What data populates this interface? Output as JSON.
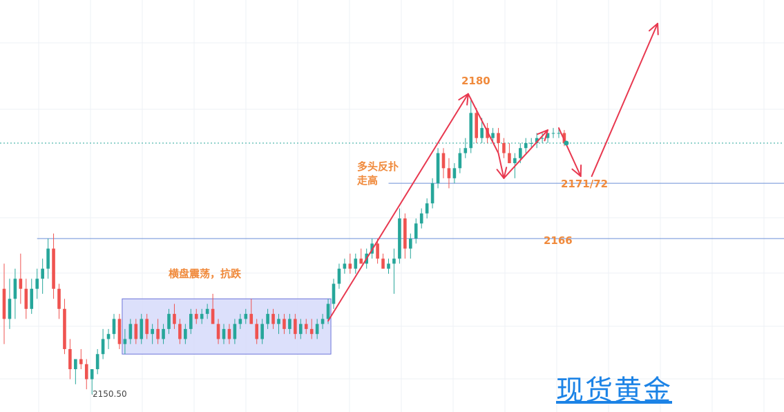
{
  "chart_data": {
    "type": "candlestick",
    "instrument_watermark": "现货黄金",
    "y_range": [
      2148.6,
      2189.6
    ],
    "grid": true,
    "colors": {
      "up": "#26a69a",
      "down": "#ef5350",
      "annotation": "#e8384f",
      "level": "#6b8fd6",
      "box_fill": "#d6dafa",
      "label": "#f08a3c",
      "watermark": "#1c83e6"
    },
    "levels": [
      {
        "value": 2166,
        "label": "2166"
      },
      {
        "value": 2171.5,
        "label": "2171/72"
      }
    ],
    "peak": {
      "value": 2180,
      "label": "2180"
    },
    "low_marker": "2150.50",
    "annotations": {
      "range": "横盘震荡，抗跌",
      "bull_line1": "多头反扑",
      "bull_line2": "走高"
    },
    "candles": [
      [
        2161,
        2163.5,
        2155.5,
        2158
      ],
      [
        2158,
        2162,
        2157,
        2160
      ],
      [
        2160,
        2163,
        2158,
        2162
      ],
      [
        2162,
        2164.5,
        2159.5,
        2161
      ],
      [
        2161,
        2162,
        2158,
        2159
      ],
      [
        2159,
        2162,
        2158.5,
        2161
      ],
      [
        2161,
        2163,
        2160,
        2162
      ],
      [
        2162,
        2164,
        2160.5,
        2163
      ],
      [
        2163,
        2166,
        2162,
        2165
      ],
      [
        2165,
        2166.5,
        2160,
        2161
      ],
      [
        2161,
        2161.5,
        2158,
        2159
      ],
      [
        2159,
        2160,
        2154.5,
        2155
      ],
      [
        2155,
        2156,
        2152,
        2153
      ],
      [
        2153,
        2154,
        2151.5,
        2154
      ],
      [
        2154,
        2155,
        2153,
        2153.5
      ],
      [
        2153.5,
        2154,
        2151,
        2152
      ],
      [
        2152,
        2153,
        2150.5,
        2153
      ],
      [
        2153,
        2155,
        2152.5,
        2154.5
      ],
      [
        2154.5,
        2157,
        2154,
        2156
      ],
      [
        2156,
        2157,
        2155,
        2156.5
      ],
      [
        2156.5,
        2158.5,
        2156,
        2158
      ],
      [
        2158,
        2158.5,
        2155,
        2155.5
      ],
      [
        2155.5,
        2157,
        2154.5,
        2156
      ],
      [
        2156,
        2158,
        2155.5,
        2157.5
      ],
      [
        2157.5,
        2158,
        2155.5,
        2156
      ],
      [
        2156,
        2158.5,
        2155.5,
        2158
      ],
      [
        2158,
        2158.5,
        2156,
        2156.5
      ],
      [
        2156.5,
        2157.5,
        2155.5,
        2157
      ],
      [
        2157,
        2158,
        2155.5,
        2156
      ],
      [
        2156,
        2157.5,
        2155.5,
        2157
      ],
      [
        2157,
        2159,
        2156.5,
        2158.5
      ],
      [
        2158.5,
        2159.5,
        2157,
        2157.5
      ],
      [
        2157.5,
        2158,
        2155.5,
        2156
      ],
      [
        2156,
        2157.5,
        2155.5,
        2157
      ],
      [
        2157,
        2159,
        2156.5,
        2158.5
      ],
      [
        2158.5,
        2159,
        2157.5,
        2158
      ],
      [
        2158,
        2159,
        2157.5,
        2158.5
      ],
      [
        2158.5,
        2159.5,
        2158,
        2159
      ],
      [
        2159,
        2160.5,
        2157.5,
        2157.5
      ],
      [
        2157.5,
        2158,
        2155.5,
        2156
      ],
      [
        2156,
        2157.5,
        2155.5,
        2157
      ],
      [
        2157,
        2157.5,
        2155.5,
        2156
      ],
      [
        2156,
        2158,
        2155.5,
        2157.5
      ],
      [
        2157.5,
        2158.5,
        2157,
        2158
      ],
      [
        2158,
        2159,
        2157.5,
        2158.5
      ],
      [
        2158.5,
        2160,
        2157.5,
        2157.5
      ],
      [
        2157.5,
        2158,
        2155.5,
        2156
      ],
      [
        2156,
        2158,
        2155.5,
        2157.5
      ],
      [
        2157.5,
        2159,
        2157,
        2158.5
      ],
      [
        2158.5,
        2159,
        2157,
        2157.5
      ],
      [
        2157.5,
        2158.5,
        2156.5,
        2158
      ],
      [
        2158,
        2158.5,
        2156.5,
        2157
      ],
      [
        2157,
        2158.5,
        2156.5,
        2158
      ],
      [
        2158,
        2158.5,
        2156,
        2156.5
      ],
      [
        2156.5,
        2158,
        2156,
        2157.5
      ],
      [
        2157.5,
        2158,
        2156.5,
        2157
      ],
      [
        2157,
        2158,
        2156,
        2156.5
      ],
      [
        2156.5,
        2158,
        2156,
        2157.5
      ],
      [
        2157.5,
        2158.5,
        2157,
        2158
      ],
      [
        2158,
        2160,
        2157.5,
        2159.5
      ],
      [
        2159.5,
        2162,
        2159,
        2161.5
      ],
      [
        2161.5,
        2163.5,
        2161,
        2163
      ],
      [
        2163,
        2164,
        2162.5,
        2163.5
      ],
      [
        2163.5,
        2164.5,
        2162.5,
        2163
      ],
      [
        2163,
        2164.5,
        2162.5,
        2164
      ],
      [
        2164,
        2165,
        2163.5,
        2163.5
      ],
      [
        2163.5,
        2165,
        2163,
        2164.5
      ],
      [
        2164.5,
        2166,
        2164,
        2165.5
      ],
      [
        2165.5,
        2166,
        2163.5,
        2164
      ],
      [
        2164,
        2164.5,
        2163,
        2163
      ],
      [
        2163,
        2164,
        2162.5,
        2163.5
      ],
      [
        2163.5,
        2165,
        2160.5,
        2164
      ],
      [
        2164,
        2169,
        2163.5,
        2168
      ],
      [
        2168,
        2168.5,
        2164,
        2165
      ],
      [
        2165,
        2166.5,
        2164,
        2166
      ],
      [
        2166,
        2168,
        2165.5,
        2167.5
      ],
      [
        2167.5,
        2169,
        2167,
        2168.5
      ],
      [
        2168.5,
        2170,
        2168,
        2169.5
      ],
      [
        2169.5,
        2172,
        2169,
        2171.5
      ],
      [
        2171.5,
        2175,
        2171,
        2174.5
      ],
      [
        2174.5,
        2175,
        2172,
        2173
      ],
      [
        2173,
        2174,
        2171,
        2172
      ],
      [
        2172,
        2173.5,
        2171.5,
        2173
      ],
      [
        2173,
        2175,
        2172.5,
        2174.5
      ],
      [
        2174.5,
        2176,
        2174,
        2175
      ],
      [
        2175,
        2180,
        2174.5,
        2178.5
      ],
      [
        2178.5,
        2179,
        2175.5,
        2176
      ],
      [
        2176,
        2178,
        2175.5,
        2177
      ],
      [
        2177,
        2177.5,
        2175.5,
        2176
      ],
      [
        2176,
        2177,
        2175.5,
        2176.5
      ],
      [
        2176.5,
        2177,
        2174.5,
        2175.5
      ],
      [
        2175.5,
        2176,
        2174,
        2174.5
      ],
      [
        2174.5,
        2175.5,
        2173.5,
        2173.5
      ],
      [
        2173.5,
        2174.5,
        2172,
        2174
      ],
      [
        2174,
        2175.5,
        2173.5,
        2175
      ],
      [
        2175,
        2176,
        2174.5,
        2175.5
      ],
      [
        2175.5,
        2176,
        2175,
        2175.5
      ],
      [
        2175.5,
        2176.5,
        2175,
        2176
      ],
      [
        2176,
        2176.5,
        2175.5,
        2176
      ],
      [
        2176,
        2176.5,
        2175.5,
        2176.5
      ],
      [
        2176.5,
        2177,
        2176,
        2176.5
      ],
      [
        2176.5,
        2177,
        2176,
        2176.5
      ],
      [
        2176.5,
        2176.8,
        2175.2,
        2175.5
      ]
    ]
  }
}
